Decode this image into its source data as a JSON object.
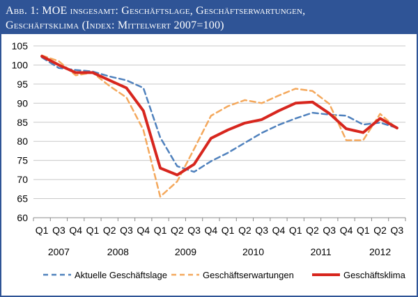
{
  "title": {
    "line1": "Abb. 1: MOE insgesamt: Geschäftslage, Geschäftserwartungen,",
    "line2": "Geschäftsklima (Index: Mittelwert 2007=100)"
  },
  "colors": {
    "header_bg": "#2f5496",
    "lage": "#4f81bd",
    "erwartungen": "#f4a85c",
    "klima": "#d7261e"
  },
  "chart_data": {
    "type": "line",
    "categories": [
      "Q1",
      "Q3",
      "Q4",
      "Q1",
      "Q2",
      "Q3",
      "Q4",
      "Q1",
      "Q2",
      "Q3",
      "Q4",
      "Q1",
      "Q2",
      "Q3",
      "Q4",
      "Q1",
      "Q2",
      "Q3",
      "Q4",
      "Q1",
      "Q2",
      "Q3"
    ],
    "years": [
      {
        "label": "2007",
        "start": 0,
        "end": 2
      },
      {
        "label": "2008",
        "start": 3,
        "end": 6
      },
      {
        "label": "2009",
        "start": 7,
        "end": 10
      },
      {
        "label": "2010",
        "start": 11,
        "end": 14
      },
      {
        "label": "2011",
        "start": 15,
        "end": 18
      },
      {
        "label": "2012",
        "start": 19,
        "end": 21
      }
    ],
    "ylim": [
      60,
      105
    ],
    "yticks": [
      60,
      65,
      70,
      75,
      80,
      85,
      90,
      95,
      100,
      105
    ],
    "grid": true,
    "legend_position": "bottom",
    "series": [
      {
        "name": "Aktuelle Geschäftslage",
        "style": "dashed",
        "color": "#4f81bd",
        "values": [
          102,
          99.2,
          98.7,
          98.3,
          97,
          96,
          94,
          81,
          73.5,
          72,
          74.8,
          77,
          79.6,
          82.2,
          84.3,
          86,
          87.5,
          87,
          86.7,
          84.4,
          84.9,
          83.5
        ]
      },
      {
        "name": "Geschäftserwartungen",
        "style": "dashed",
        "color": "#f4a85c",
        "values": [
          102.5,
          101,
          97.3,
          98,
          94.5,
          91.5,
          83,
          65.5,
          69.5,
          78,
          86.7,
          89.2,
          90.8,
          90,
          92,
          93.8,
          93.2,
          89.8,
          80.3,
          80.3,
          87.2,
          83.3
        ]
      },
      {
        "name": "Geschäftsklima",
        "style": "solid",
        "color": "#d7261e",
        "values": [
          102.3,
          100,
          98,
          98,
          96,
          94,
          88,
          73,
          71.2,
          74,
          80.8,
          83,
          84.8,
          85.7,
          88,
          90,
          90.3,
          87.3,
          83.3,
          82.3,
          86,
          83.5
        ]
      }
    ]
  }
}
